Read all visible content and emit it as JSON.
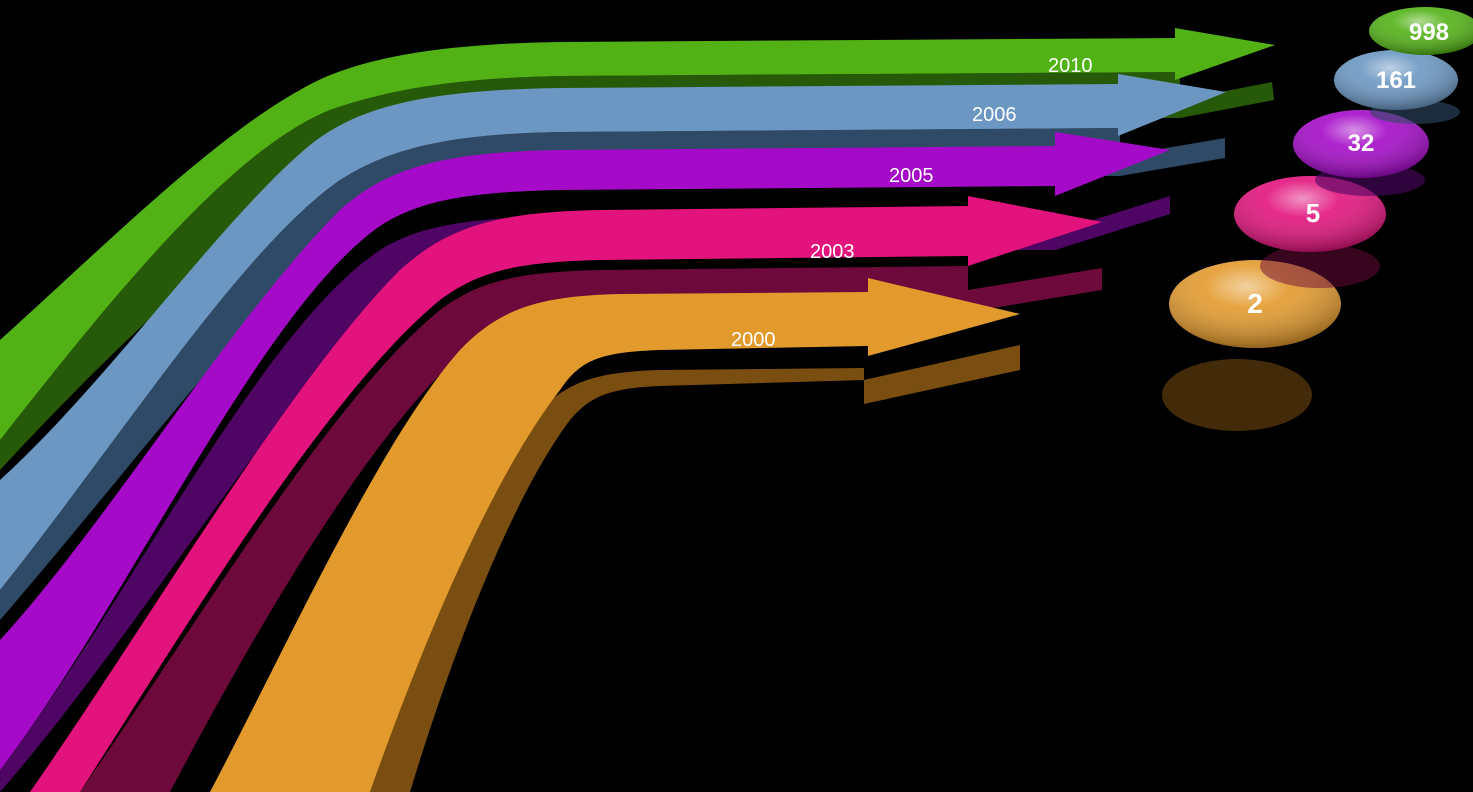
{
  "chart_data": {
    "type": "bar",
    "categories": [
      "2000",
      "2003",
      "2005",
      "2006",
      "2010"
    ],
    "values": [
      2,
      5,
      32,
      161,
      998
    ]
  },
  "arrows": [
    {
      "year": "2000",
      "count": "2",
      "color": "#e39a2c",
      "dark": "#7a4e10"
    },
    {
      "year": "2003",
      "count": "5",
      "color": "#e2137d",
      "dark": "#6d0a3b"
    },
    {
      "year": "2005",
      "count": "32",
      "color": "#a50ac8",
      "dark": "#4f0563"
    },
    {
      "year": "2006",
      "count": "161",
      "color": "#6b97c2",
      "dark": "#2f4a66"
    },
    {
      "year": "2010",
      "count": "998",
      "color": "#52b215",
      "dark": "#275a08"
    }
  ]
}
